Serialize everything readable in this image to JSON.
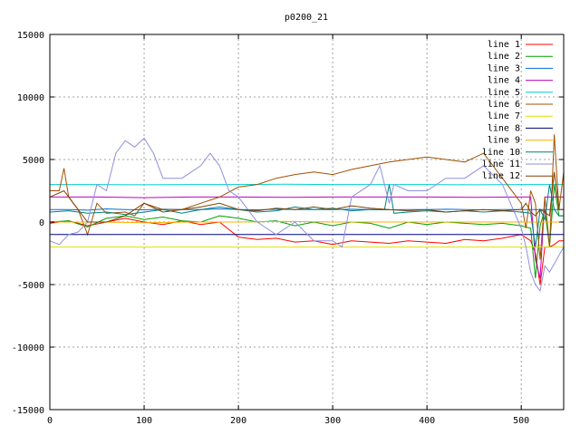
{
  "chart_data": {
    "type": "line",
    "title": "p0200_21",
    "xlabel": "",
    "ylabel": "",
    "xlim": [
      0,
      545
    ],
    "ylim": [
      -15000,
      15000
    ],
    "xticks": [
      0,
      100,
      200,
      300,
      400,
      500
    ],
    "yticks": [
      -15000,
      -10000,
      -5000,
      0,
      5000,
      10000,
      15000
    ],
    "grid": true,
    "legend_position": "top-right",
    "series": [
      {
        "name": "line 1",
        "color": "#ff0000",
        "x": [
          0,
          20,
          40,
          60,
          80,
          100,
          120,
          140,
          160,
          180,
          200,
          220,
          240,
          260,
          280,
          300,
          320,
          340,
          360,
          380,
          400,
          420,
          440,
          460,
          480,
          500,
          510,
          515,
          520,
          525,
          530,
          535,
          540,
          545
        ],
        "y": [
          -100,
          100,
          -300,
          0,
          300,
          0,
          -200,
          100,
          -200,
          0,
          -1200,
          -1400,
          -1300,
          -1600,
          -1500,
          -1800,
          -1500,
          -1600,
          -1700,
          -1500,
          -1600,
          -1700,
          -1400,
          -1500,
          -1300,
          -1000,
          -1500,
          -2500,
          -5000,
          -2000,
          -2000,
          -1800,
          -1500,
          -1500
        ]
      },
      {
        "name": "line 2",
        "color": "#00a000",
        "x": [
          0,
          20,
          40,
          60,
          80,
          100,
          120,
          140,
          160,
          180,
          200,
          220,
          240,
          260,
          280,
          300,
          320,
          340,
          360,
          380,
          400,
          420,
          440,
          460,
          480,
          500,
          510,
          515,
          520,
          525,
          530,
          535,
          540,
          545
        ],
        "y": [
          0,
          100,
          -400,
          300,
          500,
          200,
          400,
          100,
          0,
          500,
          300,
          0,
          100,
          -300,
          0,
          -300,
          0,
          -100,
          -500,
          0,
          -200,
          0,
          -100,
          -200,
          -100,
          -300,
          -500,
          -4500,
          -300,
          1000,
          -2000,
          3000,
          500,
          500
        ]
      },
      {
        "name": "line 3",
        "color": "#0070d0",
        "x": [
          0,
          20,
          40,
          60,
          80,
          100,
          120,
          140,
          160,
          180,
          200,
          220,
          240,
          260,
          280,
          300,
          320,
          340,
          360,
          380,
          400,
          420,
          440,
          460,
          480,
          500,
          510,
          515,
          520,
          525,
          530,
          535,
          540,
          545
        ],
        "y": [
          1000,
          1000,
          950,
          1050,
          1000,
          980,
          1020,
          1000,
          1000,
          1050,
          1000,
          980,
          1020,
          1000,
          1000,
          1000,
          1020,
          1000,
          980,
          1000,
          1000,
          1020,
          1000,
          980,
          1000,
          1000,
          1000,
          1000,
          1000,
          1000,
          1000,
          1000,
          1000,
          1000
        ]
      },
      {
        "name": "line 4",
        "color": "#c000c0",
        "x": [
          0,
          50,
          100,
          150,
          200,
          250,
          300,
          350,
          400,
          450,
          500,
          510,
          515,
          520,
          525,
          530,
          540,
          545
        ],
        "y": [
          2000,
          2000,
          1950,
          2000,
          2000,
          1980,
          2000,
          2000,
          2000,
          1980,
          2000,
          2000,
          -3000,
          -4500,
          2000,
          2000,
          2000,
          2000
        ]
      },
      {
        "name": "line 5",
        "color": "#00d0d0",
        "x": [
          0,
          50,
          100,
          150,
          200,
          250,
          300,
          350,
          400,
          450,
          500,
          545
        ],
        "y": [
          3000,
          3000,
          2980,
          3000,
          3000,
          3020,
          3000,
          3000,
          3000,
          2980,
          3000,
          3000
        ]
      },
      {
        "name": "line 6",
        "color": "#a05000",
        "x": [
          0,
          10,
          15,
          20,
          30,
          40,
          50,
          60,
          80,
          90,
          100,
          120,
          140,
          160,
          180,
          200,
          220,
          240,
          260,
          280,
          300,
          320,
          340,
          360,
          380,
          400,
          420,
          440,
          460,
          480,
          500,
          505,
          510,
          515,
          520,
          525,
          530,
          535,
          540,
          545
        ],
        "y": [
          2500,
          2500,
          4300,
          2000,
          1000,
          -1000,
          1500,
          700,
          800,
          500,
          1500,
          1000,
          1000,
          1500,
          2000,
          2800,
          3000,
          3500,
          3800,
          4000,
          3800,
          4200,
          4500,
          4800,
          5000,
          5200,
          5000,
          4800,
          5500,
          3500,
          1500,
          -500,
          2500,
          1500,
          -3000,
          2000,
          -2000,
          7000,
          1000,
          4000
        ]
      },
      {
        "name": "line 7",
        "color": "#e0e000",
        "x": [
          0,
          100,
          200,
          300,
          400,
          500,
          545
        ],
        "y": [
          -2000,
          -2000,
          -2000,
          -2000,
          -2000,
          -2000,
          -2000
        ]
      },
      {
        "name": "line 8",
        "color": "#000080",
        "x": [
          0,
          100,
          200,
          300,
          400,
          500,
          545
        ],
        "y": [
          -1000,
          -1000,
          -1000,
          -1000,
          -1000,
          -1000,
          -1000
        ]
      },
      {
        "name": "line 9",
        "color": "#ffb000",
        "x": [
          0,
          50,
          100,
          150,
          200,
          250,
          300,
          350,
          400,
          450,
          500,
          545
        ],
        "y": [
          0,
          0,
          -50,
          0,
          0,
          50,
          0,
          0,
          0,
          0,
          0,
          0
        ]
      },
      {
        "name": "line 10",
        "color": "#008080",
        "x": [
          0,
          20,
          40,
          60,
          80,
          100,
          120,
          140,
          160,
          180,
          200,
          220,
          240,
          260,
          280,
          300,
          320,
          340,
          355,
          360,
          365,
          380,
          400,
          420,
          440,
          460,
          480,
          500,
          510,
          515,
          520,
          525,
          530,
          535,
          540,
          545
        ],
        "y": [
          800,
          900,
          700,
          800,
          600,
          800,
          1000,
          700,
          1000,
          1200,
          1000,
          800,
          900,
          1200,
          1000,
          1100,
          900,
          1000,
          1000,
          3000,
          700,
          800,
          900,
          800,
          900,
          800,
          900,
          800,
          700,
          -2000,
          1000,
          200,
          3000,
          1000,
          500,
          500
        ]
      },
      {
        "name": "line 11",
        "color": "#9090e0",
        "x": [
          0,
          10,
          20,
          30,
          40,
          50,
          60,
          70,
          80,
          90,
          100,
          110,
          120,
          140,
          160,
          170,
          180,
          190,
          200,
          220,
          240,
          260,
          280,
          300,
          310,
          320,
          340,
          350,
          360,
          365,
          380,
          400,
          420,
          440,
          460,
          480,
          500,
          505,
          510,
          515,
          520,
          525,
          530,
          545
        ],
        "y": [
          -1500,
          -1800,
          -1000,
          -800,
          0,
          3000,
          2500,
          5500,
          6500,
          6000,
          6700,
          5500,
          3500,
          3500,
          4500,
          5500,
          4500,
          2500,
          2000,
          0,
          -1000,
          0,
          -1500,
          -1500,
          -2000,
          2000,
          3000,
          4500,
          1500,
          3000,
          2500,
          2500,
          3500,
          3500,
          4500,
          3000,
          -500,
          -2000,
          -4000,
          -5000,
          -5500,
          -3500,
          -4000,
          -2000
        ]
      },
      {
        "name": "line 12",
        "color": "#804000",
        "x": [
          0,
          15,
          20,
          40,
          60,
          80,
          100,
          120,
          140,
          160,
          180,
          200,
          220,
          240,
          260,
          280,
          300,
          320,
          340,
          360,
          380,
          400,
          420,
          440,
          460,
          480,
          500,
          505,
          510,
          515,
          520,
          525,
          530,
          535,
          540,
          545
        ],
        "y": [
          2000,
          2500,
          2000,
          0,
          0,
          500,
          1500,
          800,
          1000,
          1200,
          1500,
          1000,
          900,
          1100,
          1000,
          1200,
          1000,
          1300,
          1100,
          1000,
          900,
          1000,
          800,
          900,
          1000,
          900,
          1000,
          1500,
          800,
          500,
          1000,
          800,
          500,
          4000,
          1000,
          1000
        ]
      }
    ]
  }
}
